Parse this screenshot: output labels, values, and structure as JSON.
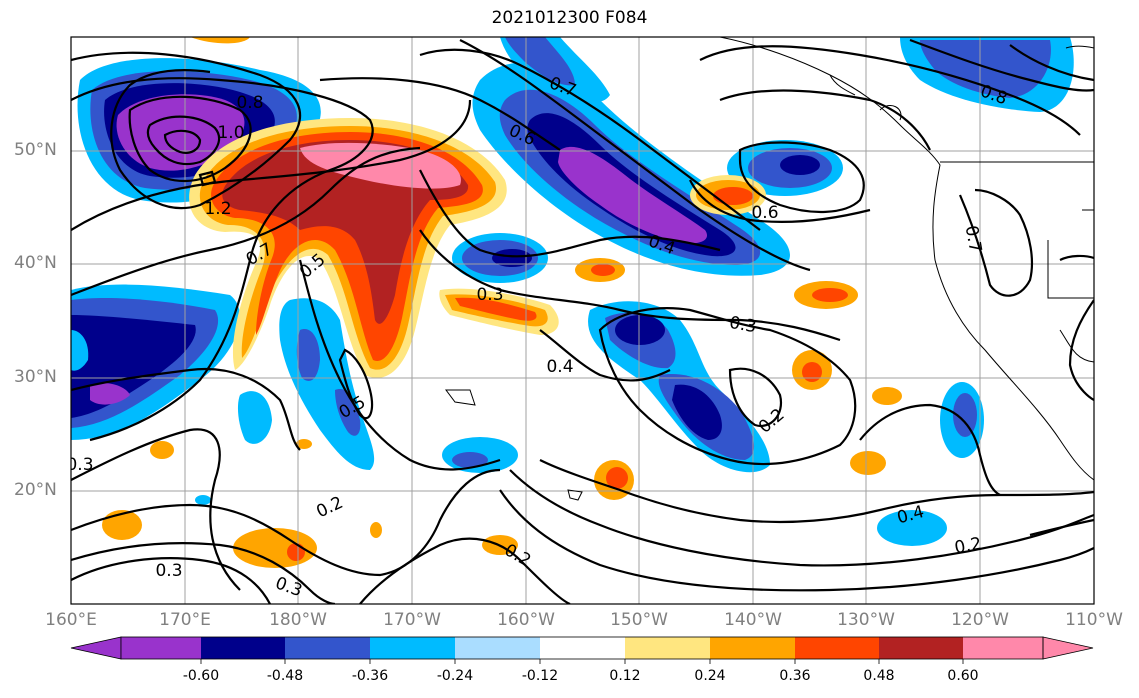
{
  "title": "2021012300 F084",
  "lat_labels": [
    "50°N",
    "40°N",
    "30°N",
    "20°N"
  ],
  "lon_labels": [
    "160°E",
    "170°E",
    "180°W",
    "170°W",
    "160°W",
    "150°W",
    "140°W",
    "130°W",
    "120°W",
    "110°W"
  ],
  "colorbar": {
    "ticks": [
      "-0.60",
      "-0.48",
      "-0.36",
      "-0.24",
      "-0.12",
      "0.12",
      "0.24",
      "0.36",
      "0.48",
      "0.60"
    ],
    "colors": [
      "#9933cc",
      "#00008b",
      "#3355cc",
      "#00bbff",
      "#aaddff",
      "#ffffff",
      "#ffe680",
      "#ffa500",
      "#ff4500",
      "#b22222",
      "#ff88aa"
    ]
  },
  "contour_labels": [
    "0.8",
    "1.0",
    "1.2",
    "0.7",
    "0.5",
    "0.3",
    "0.4",
    "0.5",
    "0.2",
    "0.3",
    "0.3",
    "0.7",
    "0.6",
    "0.4",
    "0.6",
    "0.3",
    "0.2",
    "0.8",
    "0.7",
    "0.4",
    "0.2",
    "0.2",
    "0.3"
  ]
}
